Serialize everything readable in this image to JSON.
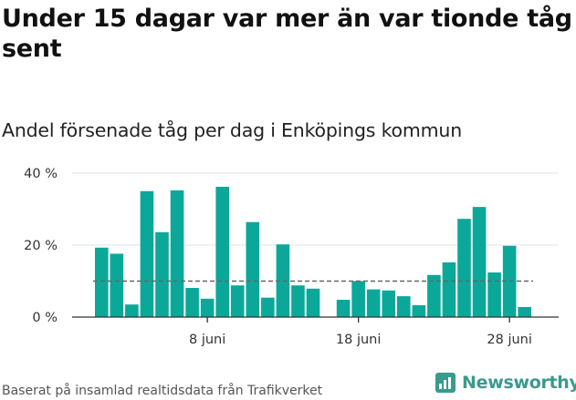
{
  "header": {
    "title": "Under 15 dagar var mer än var tionde tåg sent",
    "subtitle": "Andel försenade tåg per dag i Enköpings kommun"
  },
  "footer": {
    "source": "Baserat på insamlad realtidsdata från Trafikverket",
    "brand": "Newsworthy"
  },
  "colors": {
    "bar": "#0ba89a",
    "reference_line": "#666666",
    "grid": "#e3e3e3",
    "brand": "#3a9a8c"
  },
  "chart_data": {
    "type": "bar",
    "title": "Andel försenade tåg per dag i Enköpings kommun",
    "xlabel": "",
    "ylabel": "",
    "ylim": [
      0,
      40
    ],
    "yticks": [
      0,
      20,
      40
    ],
    "ytick_labels": [
      "0 %",
      "20 %",
      "40 %"
    ],
    "x": [
      1,
      2,
      3,
      4,
      5,
      6,
      7,
      8,
      9,
      10,
      11,
      12,
      13,
      14,
      15,
      16,
      17,
      18,
      19,
      20,
      21,
      22,
      23,
      24,
      25,
      26,
      27,
      28,
      29,
      30
    ],
    "values": [
      19.3,
      17.6,
      3.5,
      35.0,
      23.6,
      35.2,
      8.1,
      5.1,
      36.2,
      8.8,
      26.4,
      5.4,
      20.2,
      8.8,
      7.9,
      null,
      4.8,
      10.0,
      7.7,
      7.4,
      5.8,
      3.3,
      11.7,
      15.2,
      27.3,
      30.6,
      12.4,
      19.8,
      2.8,
      null
    ],
    "xticks": [
      8,
      18,
      28
    ],
    "xtick_labels": [
      "8 juni",
      "18 juni",
      "28 juni"
    ],
    "reference_line": 10,
    "reference_style": "dashed",
    "grid": true
  }
}
